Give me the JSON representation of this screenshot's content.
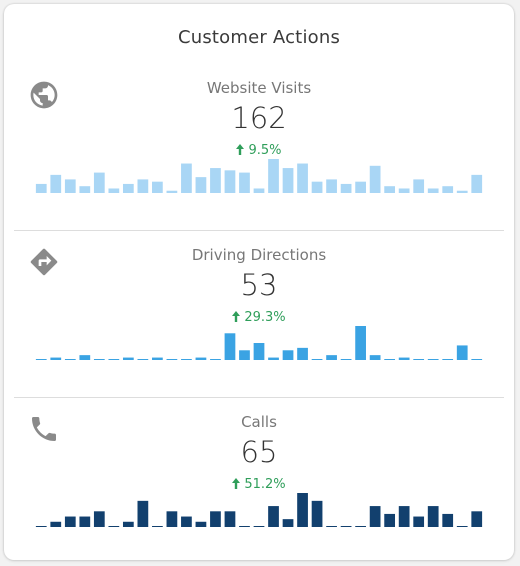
{
  "title": "Customer Actions",
  "sections": [
    {
      "id": "website",
      "label": "Website Visits",
      "value": "162",
      "change": "9.5%",
      "icon": "globe-icon",
      "color": "#a9d6f5",
      "bars": [
        4,
        8,
        6,
        3,
        9,
        2,
        4,
        6,
        5,
        1,
        13,
        7,
        11,
        10,
        9,
        2,
        15,
        11,
        13,
        5,
        6,
        4,
        5,
        12,
        3,
        2,
        6,
        2,
        3,
        1,
        8
      ]
    },
    {
      "id": "directions",
      "label": "Driving Directions",
      "value": "53",
      "change": "29.3%",
      "icon": "directions-icon",
      "color": "#3aa3e3",
      "bars": [
        0,
        1,
        0,
        2,
        0,
        0,
        1,
        0,
        1,
        0,
        0,
        1,
        0,
        11,
        4,
        7,
        1,
        4,
        5,
        0,
        2,
        0,
        14,
        2,
        0,
        1,
        0,
        0,
        0,
        6,
        0
      ]
    },
    {
      "id": "calls",
      "label": "Calls",
      "value": "65",
      "change": "51.2%",
      "icon": "phone-icon",
      "color": "#12406e",
      "bars": [
        0,
        2,
        4,
        4,
        6,
        0,
        2,
        10,
        0,
        6,
        4,
        2,
        6,
        6,
        0,
        0,
        8,
        3,
        13,
        10,
        0,
        0,
        0,
        8,
        5,
        8,
        4,
        8,
        5,
        0,
        6
      ]
    }
  ]
}
